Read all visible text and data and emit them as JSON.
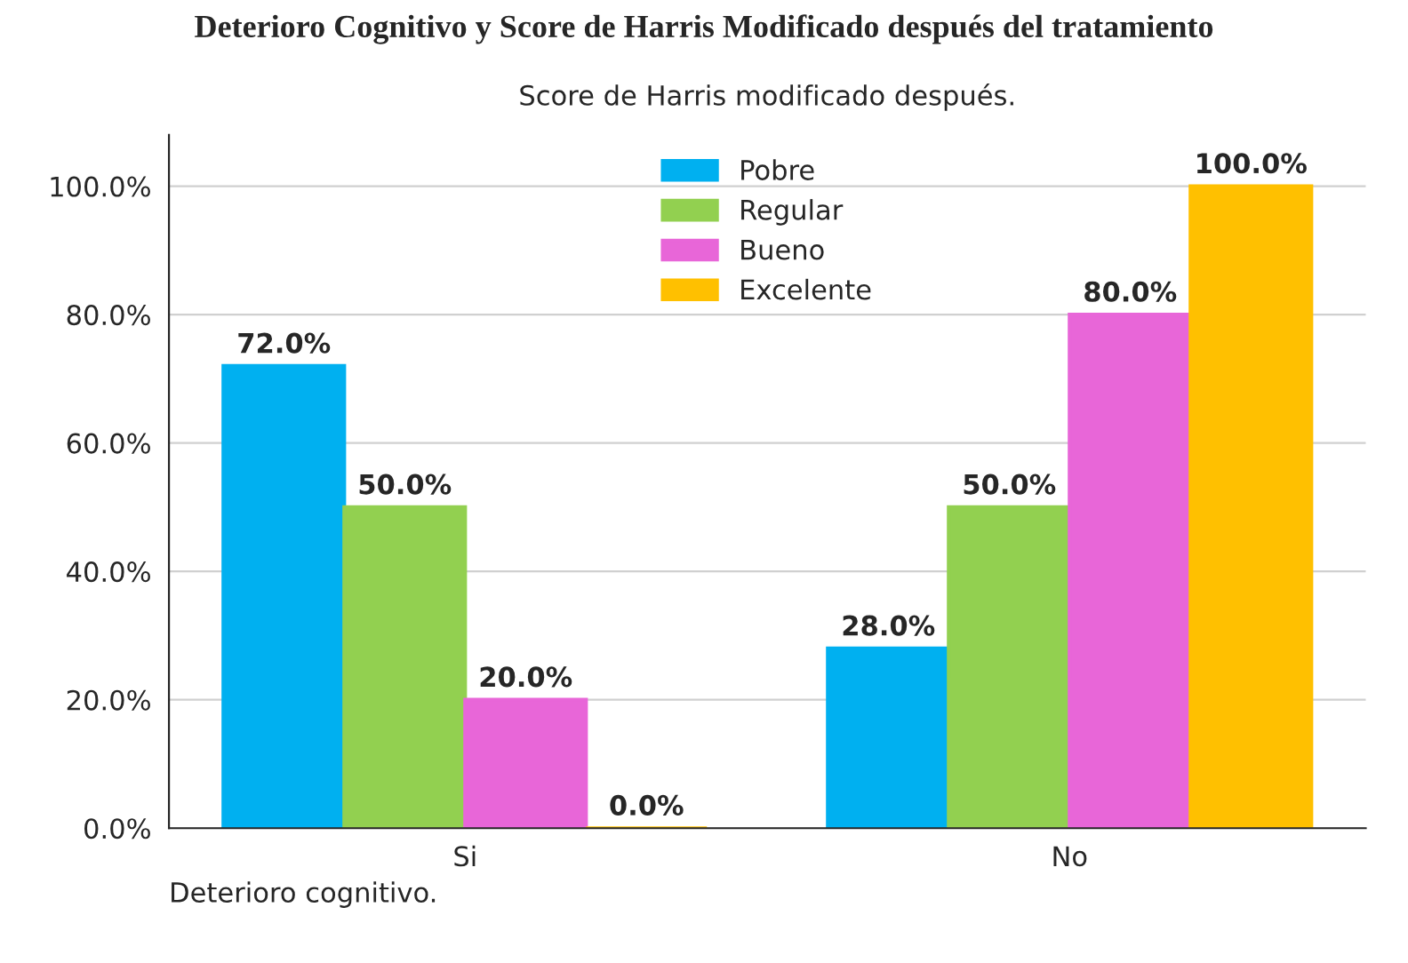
{
  "chart_data": {
    "type": "bar",
    "title": "Deterioro Cognitivo y Score de Harris Modificado después del tratamiento",
    "subtitle": "Score de Harris modificado después.",
    "xlabel": "Deterioro cognitivo.",
    "categories": [
      "Si",
      "No"
    ],
    "series": [
      {
        "name": "Pobre",
        "color": "#00b0f0",
        "values": [
          72,
          28
        ],
        "value_labels": [
          "72.0%",
          "28.0%"
        ]
      },
      {
        "name": "Regular",
        "color": "#92d050",
        "values": [
          50,
          50
        ],
        "value_labels": [
          "50.0%",
          "50.0%"
        ]
      },
      {
        "name": "Bueno",
        "color": "#e866d8",
        "values": [
          20,
          80
        ],
        "value_labels": [
          "20.0%",
          "80.0%"
        ]
      },
      {
        "name": "Excelente",
        "color": "#ffc000",
        "values": [
          0,
          100
        ],
        "value_labels": [
          "0.0%",
          "100.0%"
        ]
      }
    ],
    "ylim": [
      0,
      108
    ],
    "yticks": [
      {
        "value": 0,
        "label": "0.0%"
      },
      {
        "value": 20,
        "label": "20.0%"
      },
      {
        "value": 40,
        "label": "40.0%"
      },
      {
        "value": 60,
        "label": "60.0%"
      },
      {
        "value": 80,
        "label": "80.0%"
      },
      {
        "value": 100,
        "label": "100.0%"
      }
    ],
    "grid": "y",
    "legend": "top"
  }
}
